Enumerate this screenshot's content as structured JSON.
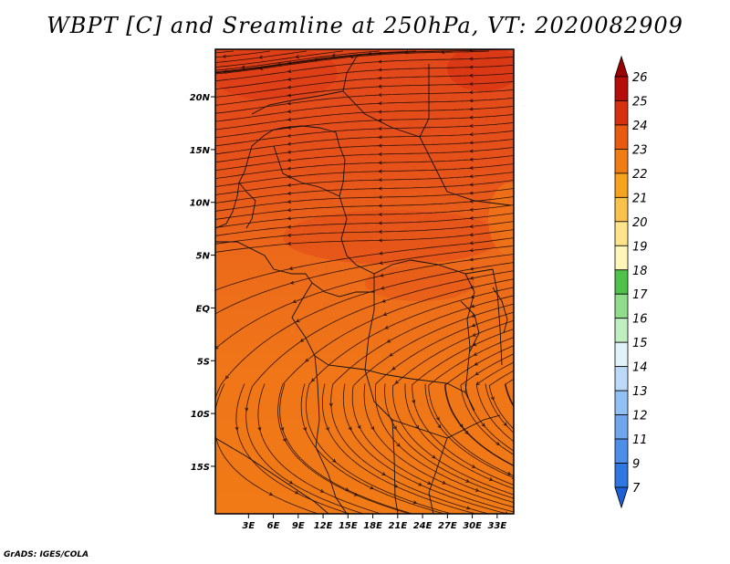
{
  "title": "WBPT [C] and Sreamline at 250hPa, VT: 2020082909",
  "credit": "GrADS: IGES/COLA",
  "map": {
    "lon_range": [
      -1,
      35
    ],
    "lat_range": [
      -19.5,
      24.5
    ],
    "x_ticks": [
      {
        "value": 3,
        "label": "3E"
      },
      {
        "value": 6,
        "label": "6E"
      },
      {
        "value": 9,
        "label": "9E"
      },
      {
        "value": 12,
        "label": "12E"
      },
      {
        "value": 15,
        "label": "15E"
      },
      {
        "value": 18,
        "label": "18E"
      },
      {
        "value": 21,
        "label": "21E"
      },
      {
        "value": 24,
        "label": "24E"
      },
      {
        "value": 27,
        "label": "27E"
      },
      {
        "value": 30,
        "label": "30E"
      },
      {
        "value": 33,
        "label": "33E"
      }
    ],
    "y_ticks": [
      {
        "value": 20,
        "label": "20N"
      },
      {
        "value": 15,
        "label": "15N"
      },
      {
        "value": 10,
        "label": "10N"
      },
      {
        "value": 5,
        "label": "5N"
      },
      {
        "value": 0,
        "label": "EQ"
      },
      {
        "value": -5,
        "label": "5S"
      },
      {
        "value": -10,
        "label": "10S"
      },
      {
        "value": -15,
        "label": "15S"
      }
    ]
  },
  "colorbar": {
    "labels": [
      "7",
      "9",
      "11",
      "12",
      "13",
      "14",
      "15",
      "16",
      "17",
      "18",
      "19",
      "20",
      "21",
      "22",
      "23",
      "24",
      "25",
      "26"
    ],
    "colors": [
      "#1f5fd6",
      "#2e76e0",
      "#4d8fe8",
      "#6ea6ee",
      "#93c0f4",
      "#bcdaf8",
      "#e2f2fb",
      "#bfeec0",
      "#8fdc8a",
      "#4fc24a",
      "#fdf6b8",
      "#fde48a",
      "#f8c24c",
      "#f5a21c",
      "#f07d14",
      "#e85a10",
      "#d63010",
      "#b40d0a",
      "#9a0004"
    ]
  }
}
